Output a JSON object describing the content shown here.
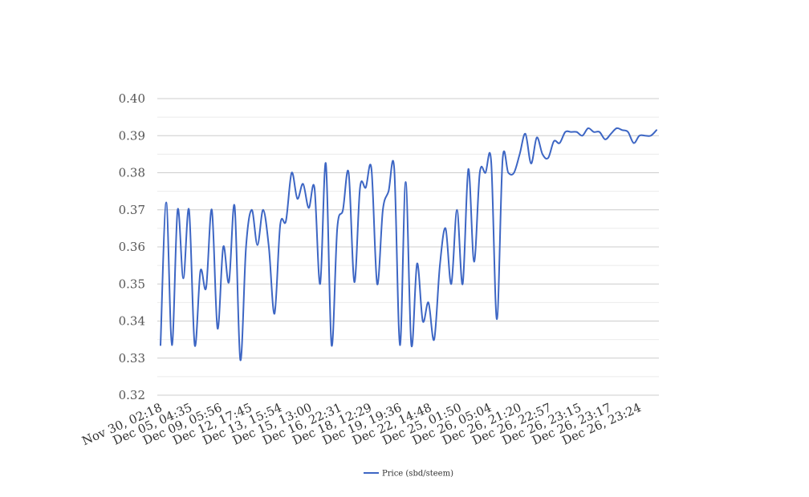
{
  "chart_data": {
    "type": "line",
    "title": "",
    "xlabel": "",
    "ylabel": "",
    "ylim": [
      0.32,
      0.4
    ],
    "yticks": [
      "0.40",
      "0.39",
      "0.38",
      "0.37",
      "0.36",
      "0.35",
      "0.34",
      "0.33",
      "0.32"
    ],
    "ytick_values": [
      0.4,
      0.39,
      0.38,
      0.37,
      0.36,
      0.35,
      0.34,
      0.33,
      0.32
    ],
    "xtick_labels": [
      "Nov 30, 02:18",
      "Dec 05, 04:35",
      "Dec 09, 05:56",
      "Dec 12, 17:45",
      "Dec 13, 15:54",
      "Dec 15, 13:00",
      "Dec 16, 22:31",
      "Dec 18, 12:29",
      "Dec 19, 19:36",
      "Dec 22, 14:48",
      "Dec 25, 01:50",
      "Dec 26, 05:04",
      "Dec 26, 21:20",
      "Dec 26, 22:57",
      "Dec 26, 23:15",
      "Dec 26, 23:17",
      "Dec 26, 23:24"
    ],
    "grid": true,
    "legend_position": "bottom",
    "colors": {
      "line": "#3d66c4",
      "grid_major": "#cccccc",
      "grid_minor": "#ebebeb"
    },
    "series": [
      {
        "name": "Price (sbd/steem)",
        "values": [
          0.3335,
          0.372,
          0.3335,
          0.37,
          0.3515,
          0.37,
          0.3335,
          0.3535,
          0.349,
          0.37,
          0.338,
          0.36,
          0.3505,
          0.371,
          0.3295,
          0.36,
          0.37,
          0.3605,
          0.37,
          0.36,
          0.342,
          0.366,
          0.367,
          0.38,
          0.373,
          0.377,
          0.3705,
          0.376,
          0.35,
          0.3825,
          0.3335,
          0.365,
          0.37,
          0.38,
          0.3505,
          0.376,
          0.376,
          0.381,
          0.35,
          0.37,
          0.375,
          0.381,
          0.3335,
          0.3775,
          0.3335,
          0.3555,
          0.34,
          0.345,
          0.335,
          0.355,
          0.365,
          0.35,
          0.37,
          0.35,
          0.381,
          0.356,
          0.38,
          0.38,
          0.383,
          0.3405,
          0.3835,
          0.38,
          0.38,
          0.385,
          0.3905,
          0.3825,
          0.3895,
          0.385,
          0.384,
          0.3885,
          0.388,
          0.391,
          0.391,
          0.391,
          0.39,
          0.392,
          0.391,
          0.391,
          0.389,
          0.3905,
          0.392,
          0.3915,
          0.391,
          0.388,
          0.39,
          0.39,
          0.39,
          0.3915
        ]
      }
    ]
  }
}
